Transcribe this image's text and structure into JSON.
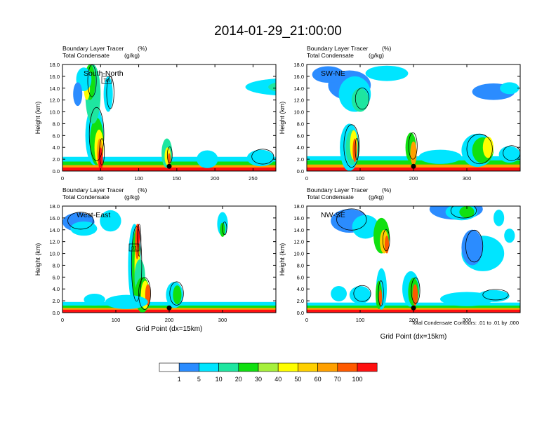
{
  "figure": {
    "title": "2014-01-29_21:00:00",
    "footnote": "Total Condensate Contours: .01 to .01 by .000",
    "ylabel": "Height (km)",
    "xlabel": "Grid Point (dx=15km)"
  },
  "colorbar": {
    "colors": [
      "#ffffff",
      "#2b8cff",
      "#00e5ff",
      "#1ee6a0",
      "#10e010",
      "#a6f03c",
      "#ffff00",
      "#ffd000",
      "#ffa000",
      "#ff5a00",
      "#ff1010"
    ],
    "labels": [
      "1",
      "5",
      "10",
      "20",
      "30",
      "40",
      "50",
      "60",
      "70",
      "100"
    ]
  },
  "chart_data": [
    {
      "type": "heatmap",
      "panel": "South-North",
      "label_left_1": "Boundary Layer Tracer",
      "label_right_1": "(%)",
      "label_left_2": "Total Condensate",
      "label_right_2": "(g/kg)",
      "xlim": [
        0,
        280
      ],
      "ylim": [
        0,
        18
      ],
      "xticks": [
        "0",
        "50",
        "100",
        "150",
        "200",
        "250"
      ],
      "xtick_values": [
        0,
        50,
        100,
        150,
        200,
        250
      ],
      "yticks": [
        "0.0",
        "2.0",
        "4.0",
        "6.0",
        "8.0",
        "10.0",
        "12.0",
        "14.0",
        "16.0",
        "18.0"
      ],
      "marker_x": 140,
      "annotation": "Tel"
    },
    {
      "type": "heatmap",
      "panel": "SW-NE",
      "label_left_1": "Boundary Layer Tracer",
      "label_right_1": "(%)",
      "label_left_2": "Total Condensate",
      "label_right_2": "(g/kg)",
      "xlim": [
        0,
        400
      ],
      "ylim": [
        0,
        18
      ],
      "xticks": [
        "0",
        "100",
        "200",
        "300"
      ],
      "xtick_values": [
        0,
        100,
        200,
        300
      ],
      "yticks": [
        "0.0",
        "2.0",
        "4.0",
        "6.0",
        "8.0",
        "10.0",
        "12.0",
        "14.0",
        "16.0",
        "18.0"
      ],
      "marker_x": 200
    },
    {
      "type": "heatmap",
      "panel": "West-East",
      "label_left_1": "Boundary Layer Tracer",
      "label_right_1": "(%)",
      "label_left_2": "Total Condensate",
      "label_right_2": "(g/kg)",
      "xlim": [
        0,
        400
      ],
      "ylim": [
        0,
        18
      ],
      "xticks": [
        "0",
        "100",
        "200",
        "300"
      ],
      "xtick_values": [
        0,
        100,
        200,
        300
      ],
      "yticks": [
        "0.0",
        "2.0",
        "4.0",
        "6.0",
        "8.0",
        "10.0",
        "12.0",
        "14.0",
        "16.0",
        "18.0"
      ],
      "marker_x": 200,
      "annotation": "01"
    },
    {
      "type": "heatmap",
      "panel": "NW-SE",
      "label_left_1": "Boundary Layer Tracer",
      "label_right_1": "(%)",
      "label_left_2": "Total Condensate",
      "label_right_2": "(g/kg)",
      "xlim": [
        0,
        400
      ],
      "ylim": [
        0,
        18
      ],
      "xticks": [
        "0",
        "100",
        "200",
        "300"
      ],
      "xtick_values": [
        0,
        100,
        200,
        300
      ],
      "yticks": [
        "0.0",
        "2.0",
        "4.0",
        "6.0",
        "8.0",
        "10.0",
        "12.0",
        "14.0",
        "16.0",
        "18.0"
      ],
      "marker_x": 200
    }
  ]
}
